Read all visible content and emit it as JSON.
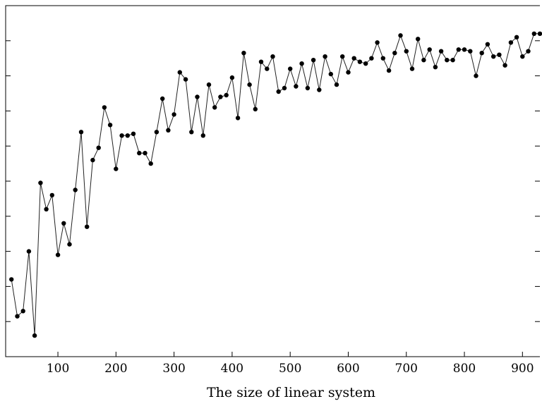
{
  "chart_data": {
    "type": "line",
    "title": "",
    "xlabel": "The  size of linear system",
    "ylabel": "",
    "xlim": [
      10,
      930
    ],
    "ylim": [
      0,
      10
    ],
    "x_ticks": [
      100,
      200,
      300,
      400,
      500,
      600,
      700,
      800,
      900
    ],
    "y_ticks": [
      1,
      2,
      3,
      4,
      5,
      6,
      7,
      8,
      9
    ],
    "y_tick_labels_visible": false,
    "grid": false,
    "legend": "none",
    "color": "#222222",
    "series": [
      {
        "x": [
          20,
          30,
          40,
          50,
          60,
          70,
          80,
          90,
          100,
          110,
          120,
          130,
          140,
          150,
          160,
          170,
          180,
          190,
          200,
          210,
          220,
          230,
          240,
          250,
          260,
          270,
          280,
          290,
          300,
          310,
          320,
          330,
          340,
          350,
          360,
          370,
          380,
          390,
          400,
          410,
          420,
          430,
          440,
          450,
          460,
          470,
          480,
          490,
          500,
          510,
          520,
          530,
          540,
          550,
          560,
          570,
          580,
          590,
          600,
          610,
          620,
          630,
          640,
          650,
          660,
          670,
          680,
          690,
          700,
          710,
          720,
          730,
          740,
          750,
          760,
          770,
          780,
          790,
          800,
          810,
          820,
          830,
          840,
          850,
          860,
          870,
          880,
          890,
          900,
          910,
          920,
          930
        ],
        "values": [
          2.2,
          1.15,
          1.3,
          3.0,
          0.6,
          4.95,
          4.2,
          4.6,
          2.9,
          3.8,
          3.2,
          4.75,
          6.4,
          3.7,
          5.6,
          5.95,
          7.1,
          6.6,
          5.35,
          6.3,
          6.3,
          6.35,
          5.8,
          5.8,
          5.5,
          6.4,
          7.35,
          6.45,
          6.9,
          8.1,
          7.9,
          6.4,
          7.4,
          6.3,
          7.75,
          7.1,
          7.4,
          7.45,
          7.95,
          6.8,
          8.65,
          7.75,
          7.05,
          8.4,
          8.2,
          8.55,
          7.55,
          7.65,
          8.2,
          7.7,
          8.35,
          7.65,
          8.45,
          7.6,
          8.55,
          8.05,
          7.75,
          8.55,
          8.1,
          8.5,
          8.4,
          8.35,
          8.5,
          8.95,
          8.5,
          8.15,
          8.65,
          9.15,
          8.7,
          8.2,
          9.05,
          8.45,
          8.75,
          8.25,
          8.7,
          8.45,
          8.45,
          8.75,
          8.75,
          8.7,
          8.0,
          8.65,
          8.9,
          8.55,
          8.6,
          8.3,
          8.95,
          9.1,
          8.55,
          8.7,
          9.2,
          9.2
        ]
      }
    ]
  }
}
